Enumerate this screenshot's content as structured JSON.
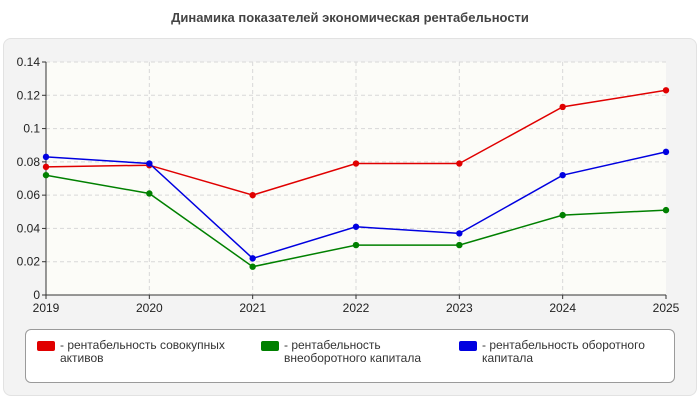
{
  "chart_data": {
    "type": "line",
    "title": "Динамика показателей экономическая рентабельности",
    "x": [
      "2019",
      "2020",
      "2021",
      "2022",
      "2023",
      "2024",
      "2025"
    ],
    "ylim": [
      0,
      0.14
    ],
    "yticks": [
      "0",
      "0.02",
      "0.04",
      "0.06",
      "0.08",
      "0.1",
      "0.12",
      "0.14"
    ],
    "grid": true,
    "legend_position": "bottom",
    "series": [
      {
        "name": "- рентабельность совокупных активов",
        "color": "#e00000",
        "values": [
          0.077,
          0.078,
          0.06,
          0.079,
          0.079,
          0.113,
          0.123
        ]
      },
      {
        "name": "- рентабельность внеоборотного капитала",
        "color": "#008000",
        "values": [
          0.072,
          0.061,
          0.017,
          0.03,
          0.03,
          0.048,
          0.051
        ]
      },
      {
        "name": "- рентабельность оборотного капитала",
        "color": "#0000e0",
        "values": [
          0.083,
          0.079,
          0.022,
          0.041,
          0.037,
          0.072,
          0.086
        ]
      }
    ]
  }
}
